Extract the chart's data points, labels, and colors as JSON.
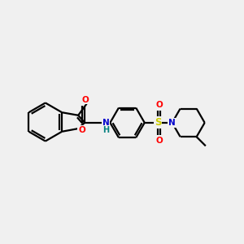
{
  "background_color": "#f0f0f0",
  "bond_color": "#000000",
  "atom_colors": {
    "O": "#ff0000",
    "N": "#0000cc",
    "S": "#cccc00",
    "H": "#008080",
    "C": "#000000"
  },
  "figsize": [
    3.0,
    3.0
  ],
  "dpi": 100,
  "lw": 1.6,
  "font_size": 7.5
}
